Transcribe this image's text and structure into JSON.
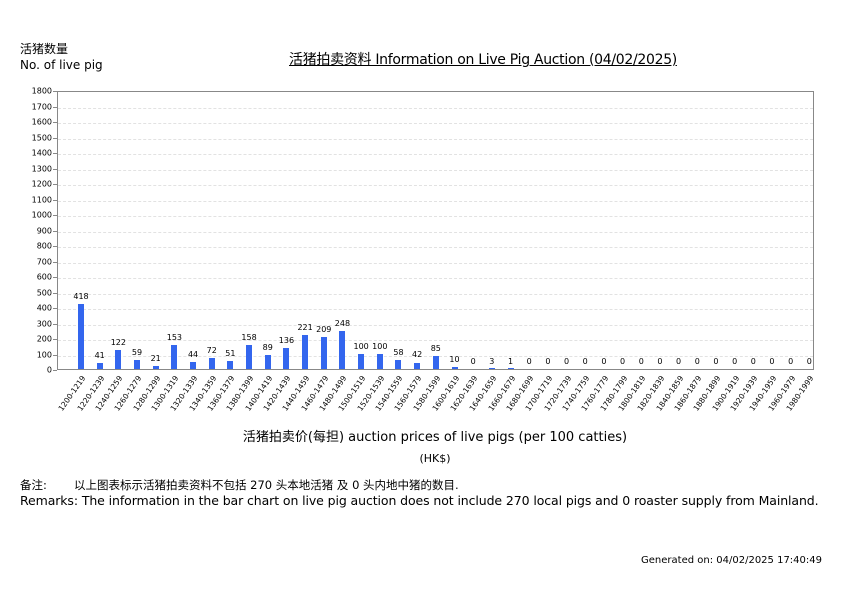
{
  "header": {
    "y_label_cn": "活猪数量",
    "y_label_en": "No. of live pig",
    "title": "活猪拍卖资料 Information on Live Pig Auction (04/02/2025)"
  },
  "axis": {
    "x_title": "活猪拍卖价(每担) auction prices of live pigs (per 100 catties)",
    "x_unit": "(HK$)"
  },
  "remarks": {
    "cn_label": "备注:",
    "cn_text": "以上图表标示活猪拍卖资料不包括 270 头本地活猪 及 0 头内地中猪的数目.",
    "en_text": "Remarks: The information in the bar chart on live pig auction does not include 270 local pigs and 0 roaster supply from Mainland."
  },
  "footer": {
    "generated": "Generated on: 04/02/2025 17:40:49"
  },
  "colors": {
    "bar": "#3366ee",
    "grid": "#e2e2e2",
    "axis": "#888888"
  },
  "chart_data": {
    "type": "bar",
    "title": "活猪拍卖资料 Information on Live Pig Auction (04/02/2025)",
    "xlabel": "活猪拍卖价(每担) auction prices of live pigs (per 100 catties) (HK$)",
    "ylabel": "活猪数量 No. of live pig",
    "ylim": [
      0,
      1800
    ],
    "yticks": [
      0,
      100,
      200,
      300,
      400,
      500,
      600,
      700,
      800,
      900,
      1000,
      1100,
      1200,
      1300,
      1400,
      1500,
      1600,
      1700,
      1800
    ],
    "grid": true,
    "legend": null,
    "categories": [
      "1200-1219",
      "1220-1239",
      "1240-1259",
      "1260-1279",
      "1280-1299",
      "1300-1319",
      "1320-1339",
      "1340-1359",
      "1360-1379",
      "1380-1399",
      "1400-1419",
      "1420-1439",
      "1440-1459",
      "1460-1479",
      "1480-1499",
      "1500-1519",
      "1520-1539",
      "1540-1559",
      "1560-1579",
      "1580-1599",
      "1600-1619",
      "1620-1639",
      "1640-1659",
      "1660-1679",
      "1680-1699",
      "1700-1719",
      "1720-1739",
      "1740-1759",
      "1760-1779",
      "1780-1799",
      "1800-1819",
      "1820-1839",
      "1840-1859",
      "1860-1879",
      "1880-1899",
      "1900-1919",
      "1920-1939",
      "1940-1959",
      "1960-1979",
      "1980-1999"
    ],
    "values": [
      418,
      41,
      122,
      59,
      21,
      153,
      44,
      72,
      51,
      158,
      89,
      136,
      221,
      209,
      248,
      100,
      100,
      58,
      42,
      85,
      10,
      0,
      3,
      1,
      0,
      0,
      0,
      0,
      0,
      0,
      0,
      0,
      0,
      0,
      0,
      0,
      0,
      0,
      0,
      0
    ]
  }
}
